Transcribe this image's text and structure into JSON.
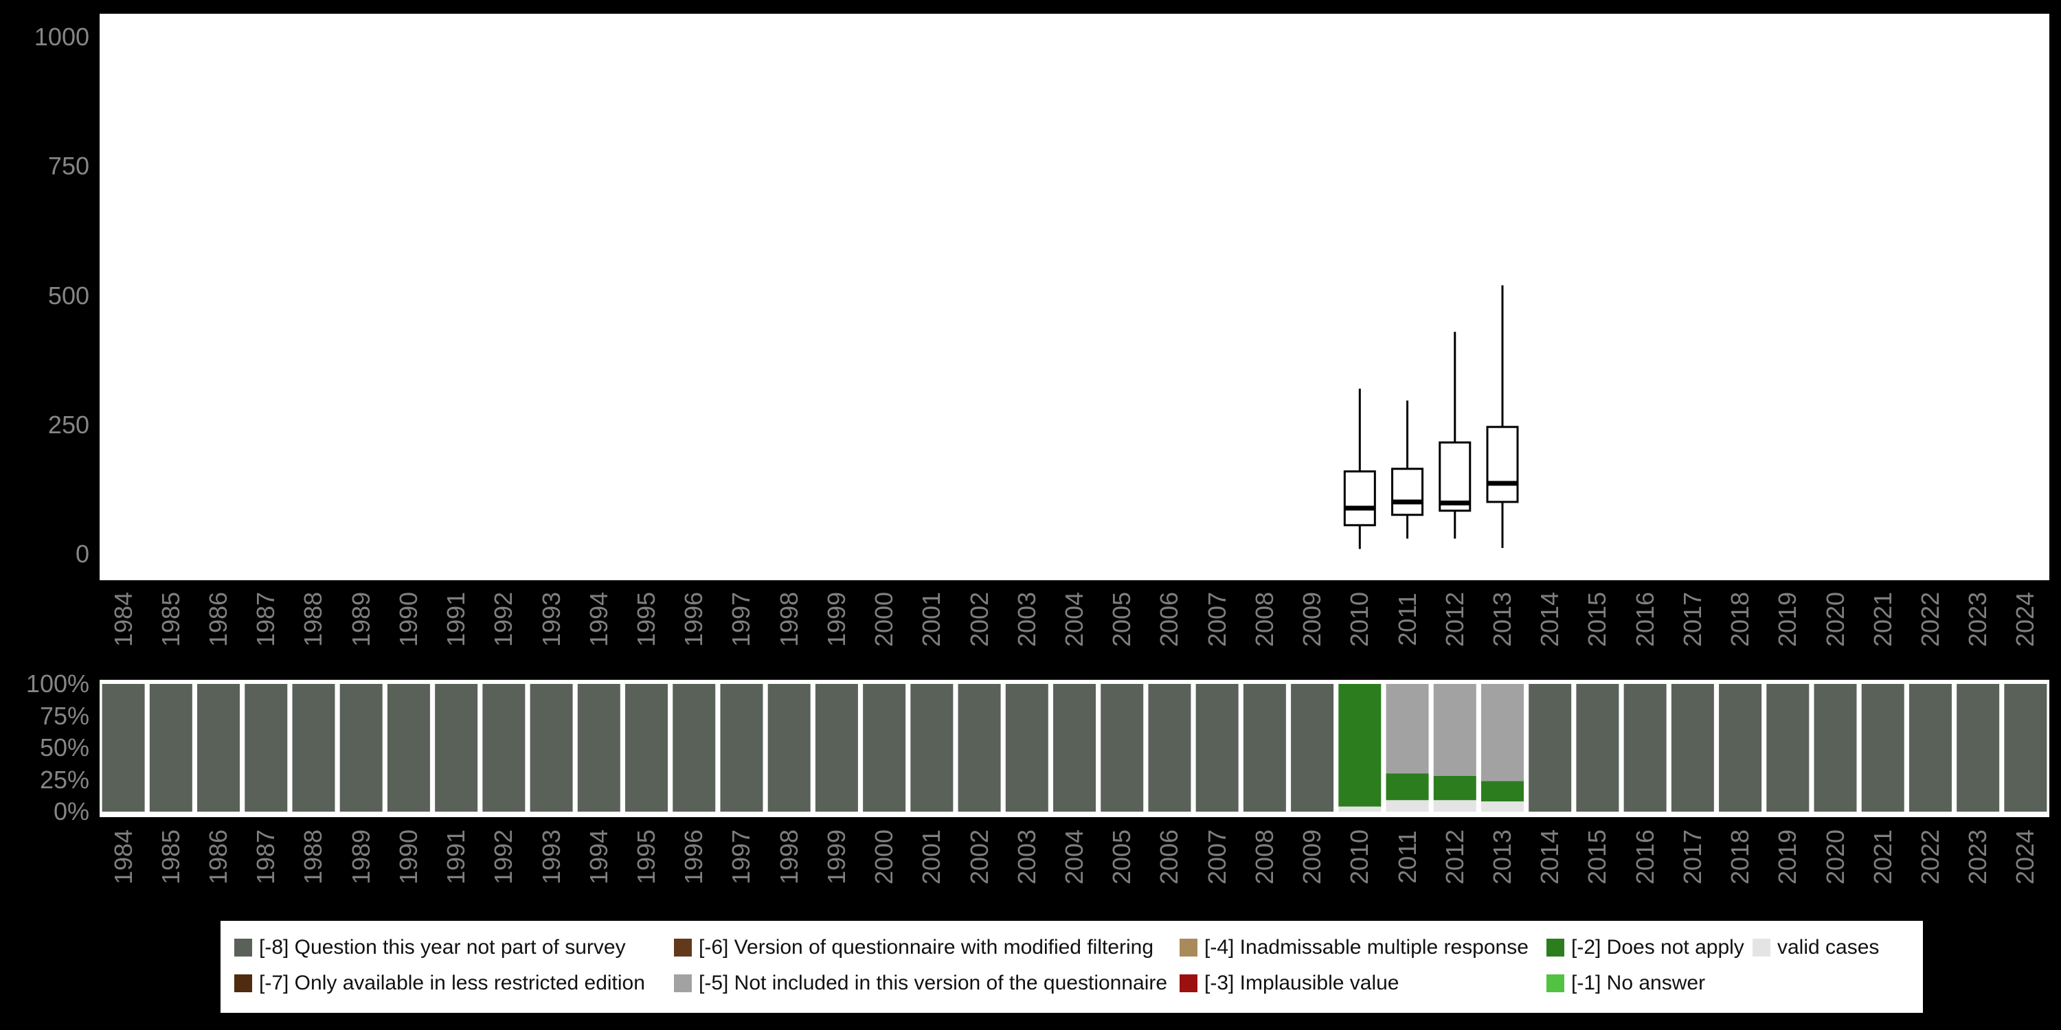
{
  "colors": {
    "page_bg": "#000000",
    "panel_bg": "#ffffff",
    "axis_text": "#7f7f7f",
    "legend_text": "#111111",
    "box_stroke": "#000000",
    "-8": "#596159",
    "-7": "#4f2c10",
    "-6": "#63391c",
    "-5": "#a2a2a2",
    "-4": "#a98a5a",
    "-3": "#9c1010",
    "-2": "#2c7d1e",
    "-1": "#52c242",
    "valid": "#e4e4e4"
  },
  "chart_data": [
    {
      "type": "boxplot",
      "title": "",
      "xlabel": "",
      "ylabel": "",
      "ylim": [
        0,
        1000
      ],
      "yticks": [
        0,
        250,
        500,
        750,
        1000
      ],
      "categories": [
        "1984",
        "1985",
        "1986",
        "1987",
        "1988",
        "1989",
        "1990",
        "1991",
        "1992",
        "1993",
        "1994",
        "1995",
        "1996",
        "1997",
        "1998",
        "1999",
        "2000",
        "2001",
        "2002",
        "2003",
        "2004",
        "2005",
        "2006",
        "2007",
        "2008",
        "2009",
        "2010",
        "2011",
        "2012",
        "2013",
        "2014",
        "2015",
        "2016",
        "2017",
        "2018",
        "2019",
        "2020",
        "2021",
        "2022",
        "2023",
        "2024"
      ],
      "boxes": [
        {
          "year": "2010",
          "whisker_low": 10,
          "q1": 56,
          "median": 89,
          "q3": 160,
          "whisker_high": 320
        },
        {
          "year": "2011",
          "whisker_low": 30,
          "q1": 76,
          "median": 101,
          "q3": 165,
          "whisker_high": 297
        },
        {
          "year": "2012",
          "whisker_low": 30,
          "q1": 84,
          "median": 99,
          "q3": 216,
          "whisker_high": 430
        },
        {
          "year": "2013",
          "whisker_low": 12,
          "q1": 101,
          "median": 137,
          "q3": 246,
          "whisker_high": 520
        }
      ]
    },
    {
      "type": "stacked-bar-percent",
      "title": "",
      "xlabel": "",
      "ylabel": "",
      "ylim": [
        0,
        100
      ],
      "yticks_labels": [
        "100%",
        "75%",
        "50%",
        "25%",
        "0%"
      ],
      "categories": [
        "1984",
        "1985",
        "1986",
        "1987",
        "1988",
        "1989",
        "1990",
        "1991",
        "1992",
        "1993",
        "1994",
        "1995",
        "1996",
        "1997",
        "1998",
        "1999",
        "2000",
        "2001",
        "2002",
        "2003",
        "2004",
        "2005",
        "2006",
        "2007",
        "2008",
        "2009",
        "2010",
        "2011",
        "2012",
        "2013",
        "2014",
        "2015",
        "2016",
        "2017",
        "2018",
        "2019",
        "2020",
        "2021",
        "2022",
        "2023",
        "2024"
      ],
      "bars": [
        {
          "year": "1984",
          "segments": [
            {
              "code": "-8",
              "pct": 100
            }
          ]
        },
        {
          "year": "1985",
          "segments": [
            {
              "code": "-8",
              "pct": 100
            }
          ]
        },
        {
          "year": "1986",
          "segments": [
            {
              "code": "-8",
              "pct": 100
            }
          ]
        },
        {
          "year": "1987",
          "segments": [
            {
              "code": "-8",
              "pct": 100
            }
          ]
        },
        {
          "year": "1988",
          "segments": [
            {
              "code": "-8",
              "pct": 100
            }
          ]
        },
        {
          "year": "1989",
          "segments": [
            {
              "code": "-8",
              "pct": 100
            }
          ]
        },
        {
          "year": "1990",
          "segments": [
            {
              "code": "-8",
              "pct": 100
            }
          ]
        },
        {
          "year": "1991",
          "segments": [
            {
              "code": "-8",
              "pct": 100
            }
          ]
        },
        {
          "year": "1992",
          "segments": [
            {
              "code": "-8",
              "pct": 100
            }
          ]
        },
        {
          "year": "1993",
          "segments": [
            {
              "code": "-8",
              "pct": 100
            }
          ]
        },
        {
          "year": "1994",
          "segments": [
            {
              "code": "-8",
              "pct": 100
            }
          ]
        },
        {
          "year": "1995",
          "segments": [
            {
              "code": "-8",
              "pct": 100
            }
          ]
        },
        {
          "year": "1996",
          "segments": [
            {
              "code": "-8",
              "pct": 100
            }
          ]
        },
        {
          "year": "1997",
          "segments": [
            {
              "code": "-8",
              "pct": 100
            }
          ]
        },
        {
          "year": "1998",
          "segments": [
            {
              "code": "-8",
              "pct": 100
            }
          ]
        },
        {
          "year": "1999",
          "segments": [
            {
              "code": "-8",
              "pct": 100
            }
          ]
        },
        {
          "year": "2000",
          "segments": [
            {
              "code": "-8",
              "pct": 100
            }
          ]
        },
        {
          "year": "2001",
          "segments": [
            {
              "code": "-8",
              "pct": 100
            }
          ]
        },
        {
          "year": "2002",
          "segments": [
            {
              "code": "-8",
              "pct": 100
            }
          ]
        },
        {
          "year": "2003",
          "segments": [
            {
              "code": "-8",
              "pct": 100
            }
          ]
        },
        {
          "year": "2004",
          "segments": [
            {
              "code": "-8",
              "pct": 100
            }
          ]
        },
        {
          "year": "2005",
          "segments": [
            {
              "code": "-8",
              "pct": 100
            }
          ]
        },
        {
          "year": "2006",
          "segments": [
            {
              "code": "-8",
              "pct": 100
            }
          ]
        },
        {
          "year": "2007",
          "segments": [
            {
              "code": "-8",
              "pct": 100
            }
          ]
        },
        {
          "year": "2008",
          "segments": [
            {
              "code": "-8",
              "pct": 100
            }
          ]
        },
        {
          "year": "2009",
          "segments": [
            {
              "code": "-8",
              "pct": 100
            }
          ]
        },
        {
          "year": "2010",
          "segments": [
            {
              "code": "valid",
              "pct": 4
            },
            {
              "code": "-2",
              "pct": 96
            }
          ]
        },
        {
          "year": "2011",
          "segments": [
            {
              "code": "valid",
              "pct": 9
            },
            {
              "code": "-2",
              "pct": 21
            },
            {
              "code": "-5",
              "pct": 70
            }
          ]
        },
        {
          "year": "2012",
          "segments": [
            {
              "code": "valid",
              "pct": 9
            },
            {
              "code": "-2",
              "pct": 19
            },
            {
              "code": "-5",
              "pct": 72
            }
          ]
        },
        {
          "year": "2013",
          "segments": [
            {
              "code": "valid",
              "pct": 8
            },
            {
              "code": "-2",
              "pct": 16
            },
            {
              "code": "-5",
              "pct": 76
            }
          ]
        },
        {
          "year": "2014",
          "segments": [
            {
              "code": "-8",
              "pct": 100
            }
          ]
        },
        {
          "year": "2015",
          "segments": [
            {
              "code": "-8",
              "pct": 100
            }
          ]
        },
        {
          "year": "2016",
          "segments": [
            {
              "code": "-8",
              "pct": 100
            }
          ]
        },
        {
          "year": "2017",
          "segments": [
            {
              "code": "-8",
              "pct": 100
            }
          ]
        },
        {
          "year": "2018",
          "segments": [
            {
              "code": "-8",
              "pct": 100
            }
          ]
        },
        {
          "year": "2019",
          "segments": [
            {
              "code": "-8",
              "pct": 100
            }
          ]
        },
        {
          "year": "2020",
          "segments": [
            {
              "code": "-8",
              "pct": 100
            }
          ]
        },
        {
          "year": "2021",
          "segments": [
            {
              "code": "-8",
              "pct": 100
            }
          ]
        },
        {
          "year": "2022",
          "segments": [
            {
              "code": "-8",
              "pct": 100
            }
          ]
        },
        {
          "year": "2023",
          "segments": [
            {
              "code": "-8",
              "pct": 100
            }
          ]
        },
        {
          "year": "2024",
          "segments": [
            {
              "code": "-8",
              "pct": 100
            }
          ]
        }
      ]
    }
  ],
  "legend": {
    "rows": [
      [
        {
          "code": "-8",
          "label": "[-8] Question this year not part of survey"
        },
        {
          "code": "-6",
          "label": "[-6] Version of questionnaire with modified filtering"
        },
        {
          "code": "-4",
          "label": "[-4] Inadmissable multiple response"
        },
        {
          "code": "-2",
          "label": "[-2] Does not apply"
        },
        {
          "code": "valid",
          "label": "valid cases"
        }
      ],
      [
        {
          "code": "-7",
          "label": "[-7] Only available in less restricted edition"
        },
        {
          "code": "-5",
          "label": "[-5] Not included in this version of the questionnaire"
        },
        {
          "code": "-3",
          "label": "[-3] Implausible value"
        },
        {
          "code": "-1",
          "label": "[-1] No answer"
        }
      ]
    ]
  }
}
